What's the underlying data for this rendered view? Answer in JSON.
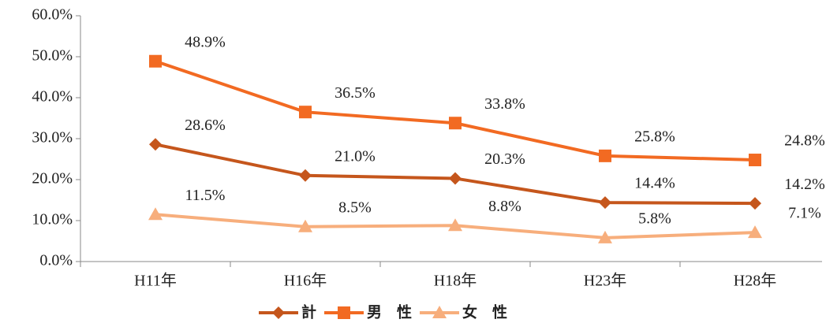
{
  "chart_data": {
    "type": "line",
    "categories": [
      "H11年",
      "H16年",
      "H18年",
      "H23年",
      "H28年"
    ],
    "series": [
      {
        "name": "計",
        "color": "#c5561c",
        "marker": "diamond",
        "values": [
          28.6,
          21.0,
          20.3,
          14.4,
          14.2
        ],
        "value_labels": [
          "28.6%",
          "21.0%",
          "20.3%",
          "14.4%",
          "14.2%"
        ]
      },
      {
        "name": "男　性",
        "color": "#f26a22",
        "marker": "square",
        "values": [
          48.9,
          36.5,
          33.8,
          25.8,
          24.8
        ],
        "value_labels": [
          "48.9%",
          "36.5%",
          "33.8%",
          "25.8%",
          "24.8%"
        ]
      },
      {
        "name": "女　性",
        "color": "#f7ae7c",
        "marker": "triangle",
        "values": [
          11.5,
          8.5,
          8.8,
          5.8,
          7.1
        ],
        "value_labels": [
          "11.5%",
          "8.5%",
          "8.8%",
          "5.8%",
          "7.1%"
        ]
      }
    ],
    "ylim": [
      0,
      60
    ],
    "yticks": [
      {
        "value": 0,
        "label": "0.0%"
      },
      {
        "value": 10,
        "label": "10.0%"
      },
      {
        "value": 20,
        "label": "20.0%"
      },
      {
        "value": 30,
        "label": "30.0%"
      },
      {
        "value": 40,
        "label": "40.0%"
      },
      {
        "value": 50,
        "label": "50.0%"
      },
      {
        "value": 60,
        "label": "60.0%"
      }
    ],
    "legend": "bottom"
  }
}
